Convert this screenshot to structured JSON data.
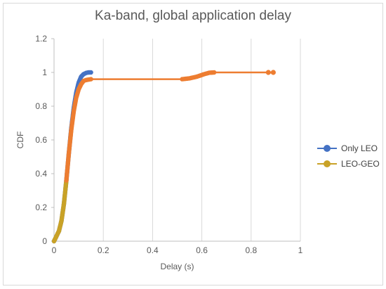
{
  "chart_data": {
    "type": "line",
    "title": "Ka-band, global application delay",
    "xlabel": "Delay (s)",
    "ylabel": "CDF",
    "xlim": [
      0,
      1
    ],
    "ylim": [
      0,
      1.2
    ],
    "x_ticks": [
      "0",
      "0.2",
      "0.4",
      "0.6",
      "0.8",
      "1"
    ],
    "y_ticks": [
      "0",
      "0.2",
      "0.4",
      "0.6",
      "0.8",
      "1",
      "1.2"
    ],
    "grid": "vertical",
    "legend": "right",
    "series": [
      {
        "name": "Only LEO",
        "color": "#4472C4",
        "x": [
          0.0,
          0.01,
          0.02,
          0.03,
          0.04,
          0.05,
          0.06,
          0.07,
          0.08,
          0.09,
          0.1,
          0.11,
          0.12,
          0.13,
          0.14,
          0.15
        ],
        "y": [
          0.0,
          0.03,
          0.06,
          0.12,
          0.22,
          0.36,
          0.52,
          0.67,
          0.79,
          0.88,
          0.94,
          0.975,
          0.99,
          0.997,
          1.0,
          1.0
        ]
      },
      {
        "name": "LEO-GEO",
        "color": "#C9A227",
        "x": [
          0.0,
          0.01,
          0.02,
          0.03,
          0.04,
          0.05,
          0.06,
          0.07,
          0.08,
          0.09,
          0.1,
          0.11,
          0.12,
          0.13,
          0.15,
          0.3,
          0.52,
          0.55,
          0.58,
          0.61,
          0.63,
          0.65,
          0.87,
          0.89
        ],
        "y": [
          0.0,
          0.03,
          0.06,
          0.12,
          0.22,
          0.36,
          0.52,
          0.66,
          0.77,
          0.85,
          0.9,
          0.93,
          0.95,
          0.955,
          0.96,
          0.96,
          0.96,
          0.965,
          0.975,
          0.99,
          0.998,
          1.0,
          1.0,
          1.0
        ],
        "overlay_color": "#ED7D31"
      }
    ]
  }
}
